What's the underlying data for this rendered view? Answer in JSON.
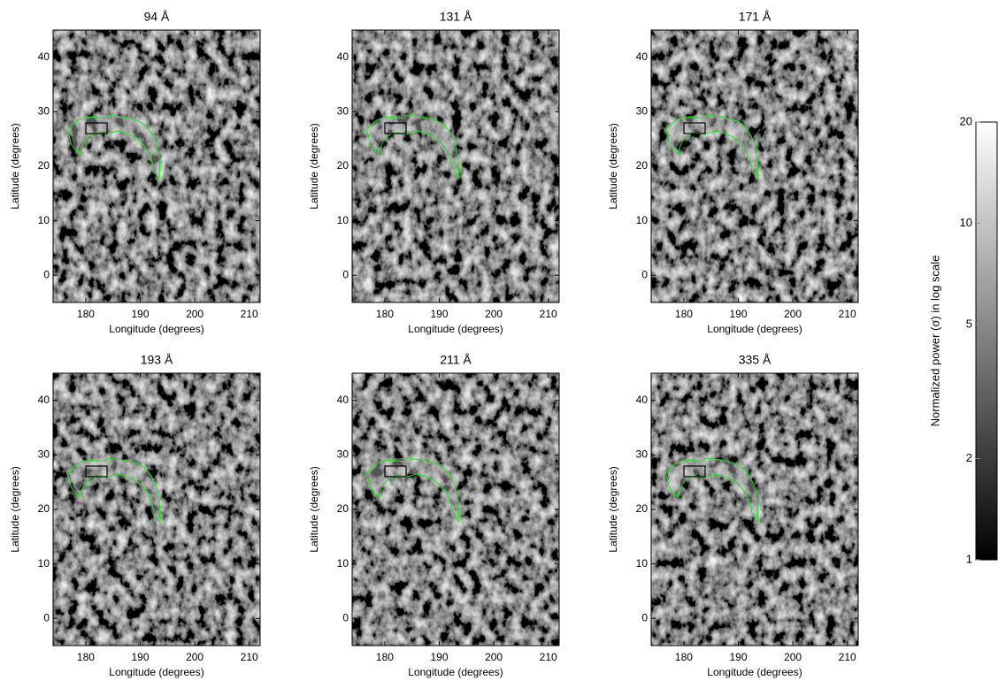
{
  "chart_data": [
    {
      "type": "image",
      "title": "94 Å",
      "xlabel": "Longitude (degrees)",
      "ylabel": "Latitude (degrees)",
      "xlim": [
        174,
        212
      ],
      "ylim": [
        -5,
        45
      ],
      "xticks": [
        180,
        190,
        200,
        210
      ],
      "yticks": [
        0,
        10,
        20,
        30,
        40
      ]
    },
    {
      "type": "image",
      "title": "131 Å",
      "xlabel": "Longitude (degrees)",
      "ylabel": "Latitude (degrees)",
      "xlim": [
        174,
        212
      ],
      "ylim": [
        -5,
        45
      ],
      "xticks": [
        180,
        190,
        200,
        210
      ],
      "yticks": [
        0,
        10,
        20,
        30,
        40
      ]
    },
    {
      "type": "image",
      "title": "171 Å",
      "xlabel": "Longitude (degrees)",
      "ylabel": "Latitude (degrees)",
      "xlim": [
        174,
        212
      ],
      "ylim": [
        -5,
        45
      ],
      "xticks": [
        180,
        190,
        200,
        210
      ],
      "yticks": [
        0,
        10,
        20,
        30,
        40
      ]
    },
    {
      "type": "image",
      "title": "193 Å",
      "xlabel": "Longitude (degrees)",
      "ylabel": "Latitude (degrees)",
      "xlim": [
        174,
        212
      ],
      "ylim": [
        -5,
        45
      ],
      "xticks": [
        180,
        190,
        200,
        210
      ],
      "yticks": [
        0,
        10,
        20,
        30,
        40
      ]
    },
    {
      "type": "image",
      "title": "211 Å",
      "xlabel": "Longitude (degrees)",
      "ylabel": "Latitude (degrees)",
      "xlim": [
        174,
        212
      ],
      "ylim": [
        -5,
        45
      ],
      "xticks": [
        180,
        190,
        200,
        210
      ],
      "yticks": [
        0,
        10,
        20,
        30,
        40
      ]
    },
    {
      "type": "image",
      "title": "335 Å",
      "xlabel": "Longitude (degrees)",
      "ylabel": "Latitude (degrees)",
      "xlim": [
        174,
        212
      ],
      "ylim": [
        -5,
        45
      ],
      "xticks": [
        180,
        190,
        200,
        210
      ],
      "yticks": [
        0,
        10,
        20,
        30,
        40
      ]
    },
    {
      "type": "colorbar",
      "ylabel": "Normalized power (σ) in log scale",
      "log_scale": true,
      "ylim": [
        1,
        20
      ],
      "yticks": [
        1,
        2,
        5,
        10,
        20
      ],
      "colors": [
        "#000000",
        "#ffffff"
      ]
    }
  ]
}
